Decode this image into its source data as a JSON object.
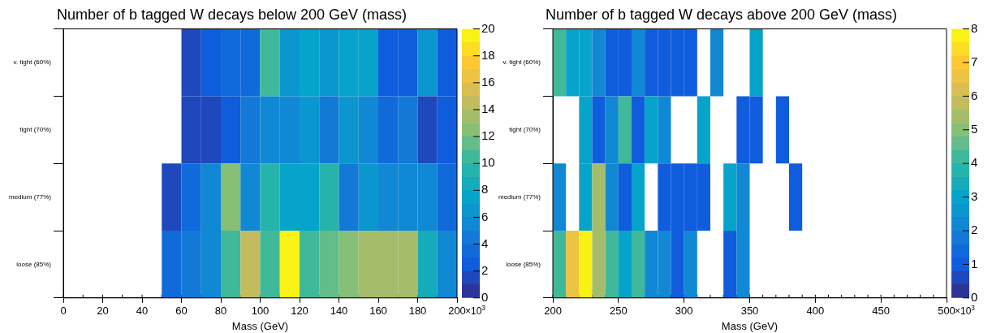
{
  "chart_data": [
    {
      "type": "heatmap",
      "title": "Number of b tagged W decays below 200 GeV (mass)",
      "xlabel": "Mass (GeV)",
      "x": [
        5,
        15,
        25,
        35,
        45,
        55,
        65,
        75,
        85,
        95,
        105,
        115,
        125,
        135,
        145,
        155,
        165,
        175,
        185,
        195
      ],
      "xlim": [
        0,
        200
      ],
      "xticks": [
        0,
        20,
        40,
        60,
        80,
        100,
        120,
        140,
        160,
        180,
        200
      ],
      "y_categories": [
        "v. tight (60%)",
        "tight (70%)",
        "medium (77%)",
        "loose (85%)"
      ],
      "cells": [
        [
          null,
          null,
          null,
          null,
          null,
          null,
          1.5,
          2.5,
          3.5,
          3.5,
          10.5,
          6.5,
          7.5,
          6.5,
          7.5,
          7.5,
          2.5,
          2.5,
          6.5,
          2.5
        ],
        [
          null,
          null,
          null,
          null,
          null,
          null,
          1.5,
          1.5,
          2.5,
          4.5,
          5.5,
          5.5,
          6.5,
          4.5,
          6.5,
          5.5,
          3.5,
          4.5,
          1.5,
          2.5
        ],
        [
          null,
          null,
          null,
          null,
          null,
          1.5,
          3.5,
          5.5,
          12.5,
          5.5,
          9.5,
          7.5,
          7.5,
          9.5,
          4.5,
          6.5,
          5.5,
          5.5,
          5.5,
          3.5
        ],
        [
          null,
          null,
          null,
          null,
          null,
          3.5,
          4.5,
          5.5,
          10.5,
          14.5,
          10.5,
          19.5,
          10.5,
          11.5,
          12.5,
          13.5,
          13.5,
          13.5,
          8.5,
          5.5
        ]
      ],
      "clim": [
        0,
        20
      ],
      "cticks": [
        0,
        2,
        4,
        6,
        8,
        10,
        12,
        14,
        16,
        18,
        20
      ],
      "annotations": [
        "×10$^{3}$"
      ]
    },
    {
      "type": "heatmap",
      "title": "Number of b tagged W decays above 200 GeV (mass)",
      "xlabel": "Mass (GeV)",
      "x": [
        205,
        215,
        225,
        235,
        245,
        255,
        265,
        275,
        285,
        295,
        305,
        315,
        325,
        335,
        345,
        355,
        365,
        375,
        385,
        395,
        405,
        415,
        425,
        435,
        445,
        455,
        465,
        475,
        485,
        495
      ],
      "xlim": [
        200,
        500
      ],
      "xticks": [
        200,
        250,
        300,
        350,
        400,
        450,
        500
      ],
      "y_categories": [
        "v. tight (60%)",
        "tight (70%)",
        "medium (77%)",
        "loose (85%)"
      ],
      "cells": [
        [
          4.2,
          3.0,
          3.0,
          2.2,
          1.0,
          1.0,
          2.2,
          1.0,
          1.0,
          1.0,
          1.0,
          null,
          2.2,
          null,
          null,
          3.0,
          null,
          null,
          null,
          null,
          null,
          null,
          null,
          null,
          null,
          null,
          null,
          null,
          null,
          null
        ],
        [
          null,
          null,
          3.0,
          1.0,
          2.2,
          4.2,
          1.0,
          3.0,
          2.2,
          null,
          null,
          3.0,
          null,
          null,
          1.0,
          1.0,
          null,
          1.0,
          null,
          null,
          null,
          null,
          null,
          null,
          null,
          null,
          null,
          null,
          null,
          null
        ],
        [
          2.2,
          null,
          3.0,
          5.4,
          2.2,
          1.0,
          3.0,
          null,
          1.0,
          1.0,
          1.0,
          1.0,
          null,
          3.0,
          2.2,
          null,
          null,
          null,
          1.0,
          null,
          null,
          null,
          null,
          null,
          null,
          null,
          null,
          null,
          null,
          null
        ],
        [
          4.2,
          6.6,
          7.8,
          5.4,
          4.2,
          3.0,
          4.2,
          2.2,
          2.2,
          1.0,
          2.2,
          null,
          null,
          1.0,
          2.2,
          null,
          null,
          null,
          null,
          null,
          null,
          null,
          null,
          null,
          null,
          null,
          null,
          null,
          null,
          null
        ]
      ],
      "clim": [
        0,
        8
      ],
      "cticks": [
        0,
        1,
        2,
        3,
        4,
        5,
        6,
        7,
        8
      ],
      "annotations": [
        "×10$^{3}$"
      ]
    }
  ]
}
